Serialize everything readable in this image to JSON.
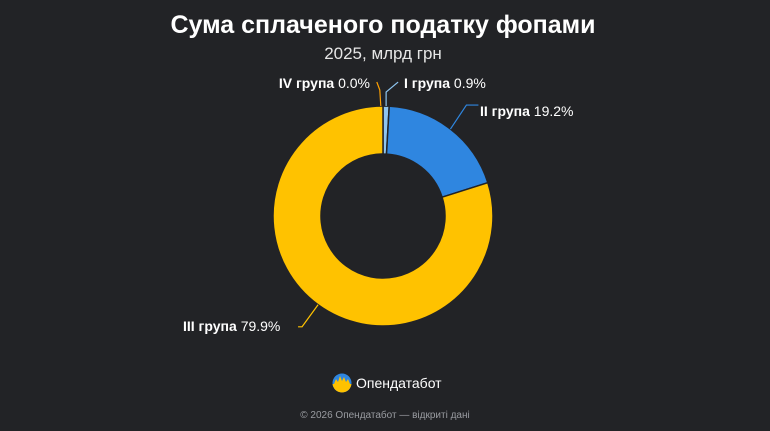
{
  "chart_data": {
    "type": "pie",
    "title": "Сума сплаченого податку фопами",
    "subtitle": "2025, млрд грн",
    "slices": [
      {
        "name": "I група",
        "value": 0.9,
        "label": "0.9%",
        "color": "#8ec5f0"
      },
      {
        "name": "II група",
        "value": 19.2,
        "label": "19.2%",
        "color": "#2f86e0"
      },
      {
        "name": "III група",
        "value": 79.9,
        "label": "79.9%",
        "color": "#ffc200"
      },
      {
        "name": "IV група",
        "value": 0.0,
        "label": "0.0%",
        "color": "#ffa000"
      }
    ]
  },
  "brand": {
    "name": "Опендатабот",
    "logo_icon": "opendatabot-logo-icon",
    "colors": {
      "blue": "#2f86e0",
      "yellow": "#ffc200"
    }
  },
  "footer": {
    "copyright": "© 2026 Опендатабот — відкриті дані"
  },
  "background_color": "#222326"
}
